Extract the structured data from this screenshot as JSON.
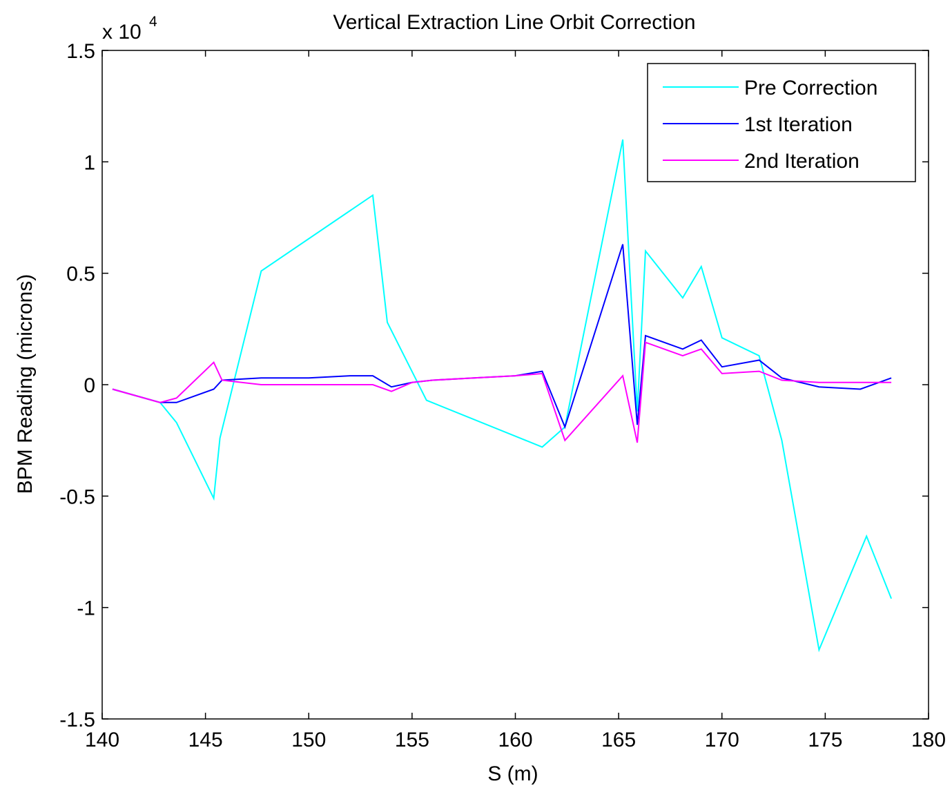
{
  "chart_data": {
    "type": "line",
    "title": "Vertical Extraction Line Orbit Correction",
    "xlabel": "S (m)",
    "ylabel": "BPM Reading (microns)",
    "y_multiplier_label": "x 10",
    "y_multiplier_exponent": "4",
    "xlim": [
      140,
      180
    ],
    "ylim": [
      -1.5,
      1.5
    ],
    "x_ticks": [
      140,
      145,
      150,
      155,
      160,
      165,
      170,
      175,
      180
    ],
    "x_tick_labels": [
      "140",
      "145",
      "150",
      "155",
      "160",
      "165",
      "170",
      "175",
      "180"
    ],
    "y_ticks": [
      -1.5,
      -1,
      -0.5,
      0,
      0.5,
      1,
      1.5
    ],
    "y_tick_labels": [
      "-1.5",
      "-1",
      "-0.5",
      "0",
      "0.5",
      "1",
      "1.5"
    ],
    "grid": false,
    "legend_position": "top-right",
    "series": [
      {
        "name": "Pre Correction",
        "color": "#00ffff",
        "x": [
          140.5,
          142.8,
          143.6,
          145.4,
          145.7,
          147.7,
          153.1,
          153.8,
          155.7,
          161.3,
          162.4,
          165.2,
          165.9,
          166.3,
          168.1,
          169.0,
          170.0,
          171.8,
          172.9,
          174.7,
          177.0,
          178.2
        ],
        "y": [
          -0.02,
          -0.08,
          -0.17,
          -0.51,
          -0.24,
          0.51,
          0.85,
          0.28,
          -0.07,
          -0.28,
          -0.19,
          1.1,
          -0.12,
          0.6,
          0.39,
          0.53,
          0.21,
          0.13,
          -0.25,
          -1.19,
          -0.68,
          -0.96
        ]
      },
      {
        "name": "1st Iteration",
        "color": "#0000ff",
        "x": [
          140.5,
          142.8,
          143.6,
          145.4,
          145.8,
          147.7,
          150.0,
          152.0,
          153.1,
          154.0,
          155.0,
          156.0,
          158.0,
          160.0,
          161.3,
          162.4,
          165.2,
          165.9,
          166.3,
          168.1,
          169.0,
          170.0,
          171.8,
          172.9,
          174.7,
          176.7,
          178.2
        ],
        "y": [
          -0.02,
          -0.08,
          -0.08,
          -0.02,
          0.02,
          0.03,
          0.03,
          0.04,
          0.04,
          -0.01,
          0.01,
          0.02,
          0.03,
          0.04,
          0.06,
          -0.19,
          0.63,
          -0.18,
          0.22,
          0.16,
          0.2,
          0.08,
          0.11,
          0.03,
          -0.01,
          -0.02,
          0.03
        ]
      },
      {
        "name": "2nd Iteration",
        "color": "#ff00ff",
        "x": [
          140.5,
          142.8,
          143.6,
          145.4,
          145.8,
          147.7,
          150.0,
          152.0,
          153.1,
          154.0,
          155.0,
          156.0,
          158.0,
          160.0,
          161.3,
          162.4,
          165.2,
          165.9,
          166.3,
          168.1,
          169.0,
          170.0,
          171.8,
          172.9,
          174.7,
          176.7,
          178.2
        ],
        "y": [
          -0.02,
          -0.08,
          -0.06,
          0.1,
          0.02,
          0.0,
          0.0,
          0.0,
          0.0,
          -0.03,
          0.01,
          0.02,
          0.03,
          0.04,
          0.05,
          -0.25,
          0.04,
          -0.26,
          0.19,
          0.13,
          0.16,
          0.05,
          0.06,
          0.02,
          0.01,
          0.01,
          0.01
        ]
      }
    ]
  }
}
